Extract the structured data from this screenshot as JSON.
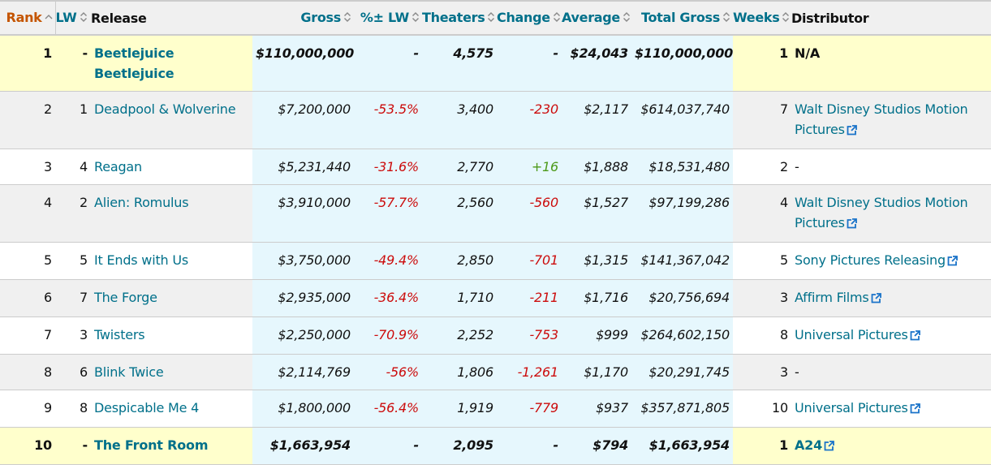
{
  "columns": [
    {
      "label": "Rank",
      "sort_icon": "sort-up-icon"
    },
    {
      "label": "LW",
      "sort_icon": "sort-icon"
    },
    {
      "label": "Release"
    },
    {
      "label": "Gross",
      "sort_icon": "sort-icon"
    },
    {
      "label": "%± LW",
      "sort_icon": "sort-icon"
    },
    {
      "label": "Theaters",
      "sort_icon": "sort-icon"
    },
    {
      "label": "Change",
      "sort_icon": "sort-icon"
    },
    {
      "label": "Average",
      "sort_icon": "sort-icon"
    },
    {
      "label": "Total Gross",
      "sort_icon": "sort-icon"
    },
    {
      "label": "Weeks",
      "sort_icon": "sort-icon"
    },
    {
      "label": "Distributor"
    }
  ],
  "colors": {
    "link": "#00708a",
    "rank_header": "#c45500",
    "negative": "#cc0c0c",
    "positive": "#4d9a1a",
    "highlight": "#ffffcc",
    "mid_columns": "#e6f7fd",
    "alt_row": "#f0f0f0"
  },
  "rows": [
    {
      "rank": "1",
      "lw": "-",
      "release": "Beetlejuice Beetlejuice",
      "gross": "$110,000,000",
      "pct_lw": "-",
      "theaters": "4,575",
      "change": "-",
      "average": "$24,043",
      "total_gross": "$110,000,000",
      "weeks": "1",
      "distributor": "N/A",
      "distributor_link": false,
      "highlight": true
    },
    {
      "rank": "2",
      "lw": "1",
      "release": "Deadpool & Wolverine",
      "gross": "$7,200,000",
      "pct_lw": "-53.5%",
      "theaters": "3,400",
      "change": "-230",
      "average": "$2,117",
      "total_gross": "$614,037,740",
      "weeks": "7",
      "distributor": "Walt Disney Studios Motion Pictures",
      "distributor_link": true
    },
    {
      "rank": "3",
      "lw": "4",
      "release": "Reagan",
      "gross": "$5,231,440",
      "pct_lw": "-31.6%",
      "theaters": "2,770",
      "change": "+16",
      "average": "$1,888",
      "total_gross": "$18,531,480",
      "weeks": "2",
      "distributor": "-",
      "distributor_link": false
    },
    {
      "rank": "4",
      "lw": "2",
      "release": "Alien: Romulus",
      "gross": "$3,910,000",
      "pct_lw": "-57.7%",
      "theaters": "2,560",
      "change": "-560",
      "average": "$1,527",
      "total_gross": "$97,199,286",
      "weeks": "4",
      "distributor": "Walt Disney Studios Motion Pictures",
      "distributor_link": true
    },
    {
      "rank": "5",
      "lw": "5",
      "release": "It Ends with Us",
      "gross": "$3,750,000",
      "pct_lw": "-49.4%",
      "theaters": "2,850",
      "change": "-701",
      "average": "$1,315",
      "total_gross": "$141,367,042",
      "weeks": "5",
      "distributor": "Sony Pictures Releasing",
      "distributor_link": true
    },
    {
      "rank": "6",
      "lw": "7",
      "release": "The Forge",
      "gross": "$2,935,000",
      "pct_lw": "-36.4%",
      "theaters": "1,710",
      "change": "-211",
      "average": "$1,716",
      "total_gross": "$20,756,694",
      "weeks": "3",
      "distributor": "Affirm Films",
      "distributor_link": true
    },
    {
      "rank": "7",
      "lw": "3",
      "release": "Twisters",
      "gross": "$2,250,000",
      "pct_lw": "-70.9%",
      "theaters": "2,252",
      "change": "-753",
      "average": "$999",
      "total_gross": "$264,602,150",
      "weeks": "8",
      "distributor": "Universal Pictures",
      "distributor_link": true
    },
    {
      "rank": "8",
      "lw": "6",
      "release": "Blink Twice",
      "gross": "$2,114,769",
      "pct_lw": "-56%",
      "theaters": "1,806",
      "change": "-1,261",
      "average": "$1,170",
      "total_gross": "$20,291,745",
      "weeks": "3",
      "distributor": "-",
      "distributor_link": false
    },
    {
      "rank": "9",
      "lw": "8",
      "release": "Despicable Me 4",
      "gross": "$1,800,000",
      "pct_lw": "-56.4%",
      "theaters": "1,919",
      "change": "-779",
      "average": "$937",
      "total_gross": "$357,871,805",
      "weeks": "10",
      "distributor": "Universal Pictures",
      "distributor_link": true
    },
    {
      "rank": "10",
      "lw": "-",
      "release": "The Front Room",
      "gross": "$1,663,954",
      "pct_lw": "-",
      "theaters": "2,095",
      "change": "-",
      "average": "$794",
      "total_gross": "$1,663,954",
      "weeks": "1",
      "distributor": "A24",
      "distributor_link": true,
      "highlight": true
    }
  ]
}
